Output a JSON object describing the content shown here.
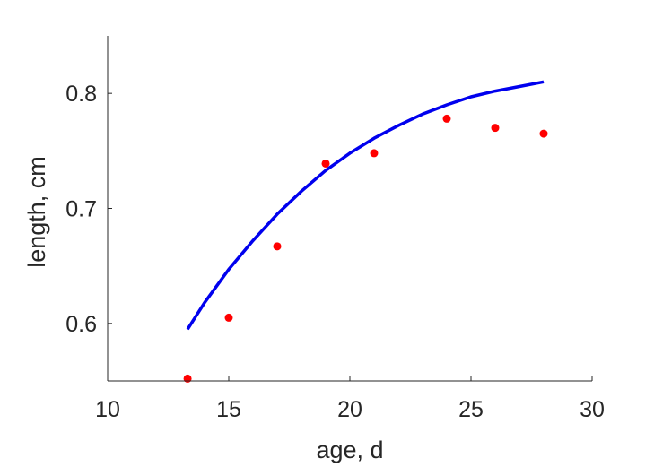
{
  "chart_data": {
    "type": "scatter",
    "xlabel": "age, d",
    "ylabel": "length, cm",
    "xlim": [
      10,
      30
    ],
    "ylim": [
      0.55,
      0.85
    ],
    "x_ticks": [
      10,
      15,
      20,
      25,
      30
    ],
    "y_ticks": [
      0.6,
      0.7,
      0.8
    ],
    "x_tick_labels": [
      "10",
      "15",
      "20",
      "25",
      "30"
    ],
    "y_tick_labels": [
      "0.6",
      "0.7",
      "0.8"
    ],
    "grid": false,
    "legend": "none",
    "series": [
      {
        "kind": "points",
        "color": "#ff0000",
        "x": [
          13.3,
          15,
          17,
          19,
          21,
          24,
          26,
          28
        ],
        "y": [
          0.552,
          0.605,
          0.667,
          0.739,
          0.748,
          0.778,
          0.77,
          0.765
        ]
      },
      {
        "kind": "line",
        "color": "#0000ee",
        "x": [
          13.3,
          14,
          15,
          16,
          17,
          18,
          19,
          20,
          21,
          22,
          23,
          24,
          25,
          26,
          27,
          28
        ],
        "y": [
          0.595,
          0.618,
          0.647,
          0.672,
          0.695,
          0.715,
          0.733,
          0.748,
          0.761,
          0.772,
          0.782,
          0.79,
          0.797,
          0.802,
          0.806,
          0.81
        ]
      }
    ]
  }
}
